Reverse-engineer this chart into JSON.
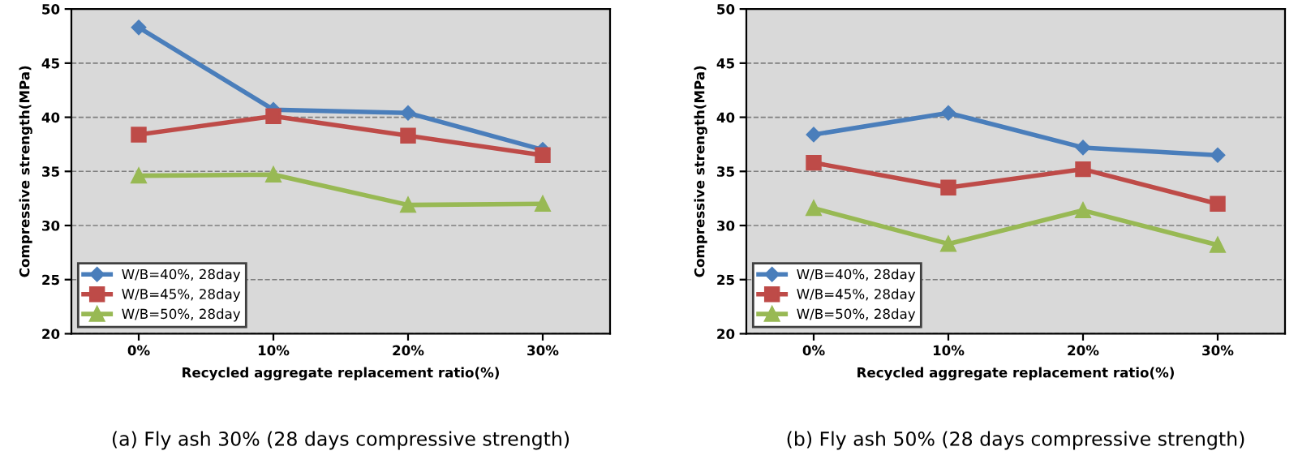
{
  "chart_data": [
    {
      "type": "line",
      "title": "(a) Fly ash 30% (28 days compressive strength)",
      "xlabel": "Recycled aggregate replacement ratio(%)",
      "ylabel": "Compressive strength(MPa)",
      "categories": [
        "0%",
        "10%",
        "20%",
        "30%"
      ],
      "ylim": [
        20,
        50
      ],
      "yticks": [
        20,
        25,
        30,
        35,
        40,
        45,
        50
      ],
      "grid": "y",
      "legend": "bottom left",
      "series": [
        {
          "name": "W/B=40%, 28day",
          "color": "#4a7ebb",
          "marker": "diamond",
          "values": [
            48.3,
            40.7,
            40.4,
            37.0
          ]
        },
        {
          "name": "W/B=45%, 28day",
          "color": "#be4b48",
          "marker": "square",
          "values": [
            38.4,
            40.1,
            38.3,
            36.5
          ]
        },
        {
          "name": "W/B=50%, 28day",
          "color": "#98b954",
          "marker": "triangle",
          "values": [
            34.6,
            34.7,
            31.9,
            32.0
          ]
        }
      ]
    },
    {
      "type": "line",
      "title": "(b) Fly ash 50% (28 days compressive strength)",
      "xlabel": "Recycled aggregate replacement ratio(%)",
      "ylabel": "Compressive strength(MPa)",
      "categories": [
        "0%",
        "10%",
        "20%",
        "30%"
      ],
      "ylim": [
        20,
        50
      ],
      "yticks": [
        20,
        25,
        30,
        35,
        40,
        45,
        50
      ],
      "grid": "y",
      "legend": "bottom left",
      "series": [
        {
          "name": "W/B=40%, 28day",
          "color": "#4a7ebb",
          "marker": "diamond",
          "values": [
            38.4,
            40.4,
            37.2,
            36.5
          ]
        },
        {
          "name": "W/B=45%, 28day",
          "color": "#be4b48",
          "marker": "square",
          "values": [
            35.8,
            33.5,
            35.2,
            32.0
          ]
        },
        {
          "name": "W/B=50%, 28day",
          "color": "#98b954",
          "marker": "triangle",
          "values": [
            31.6,
            28.3,
            31.4,
            28.2
          ]
        }
      ]
    }
  ]
}
